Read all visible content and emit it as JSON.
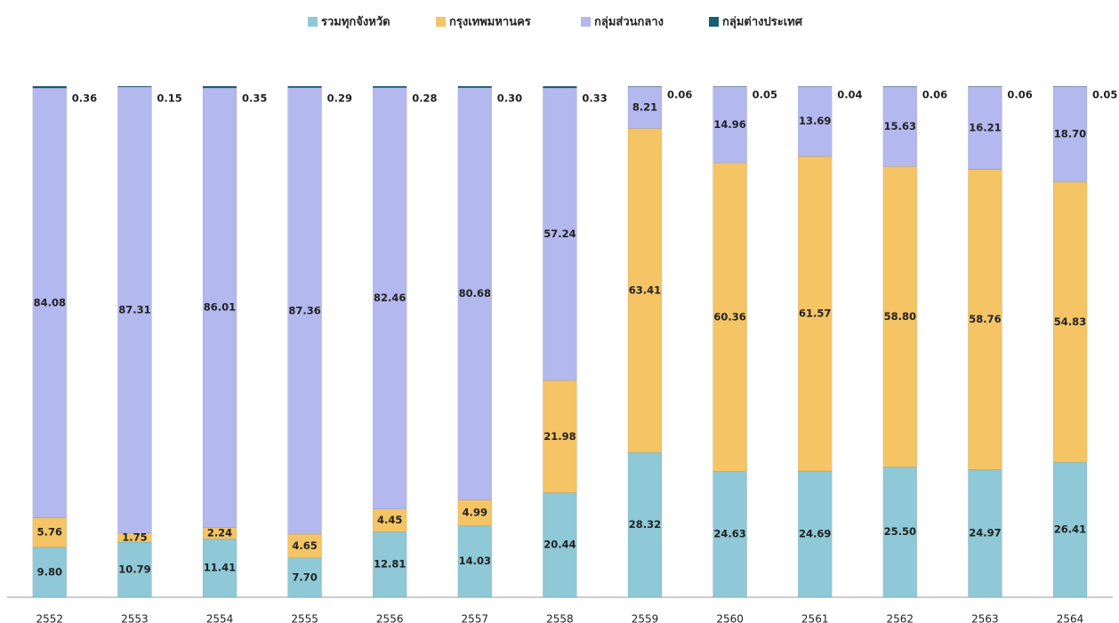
{
  "chart_data": {
    "type": "stacked_bar",
    "categories": [
      "2552",
      "2553",
      "2554",
      "2555",
      "2556",
      "2557",
      "2558",
      "2559",
      "2560",
      "2561",
      "2562",
      "2563",
      "2564"
    ],
    "series": [
      {
        "name": "รวมทุกจังหวัด",
        "color": "#8fc8d6",
        "values": [
          9.8,
          10.79,
          11.41,
          7.7,
          12.81,
          14.03,
          20.44,
          28.32,
          24.63,
          24.69,
          25.5,
          24.97,
          26.41
        ]
      },
      {
        "name": "กรุงเทพมหานคร",
        "color": "#f4c465",
        "values": [
          5.76,
          1.75,
          2.24,
          4.65,
          4.45,
          4.99,
          21.98,
          63.41,
          60.36,
          61.57,
          58.8,
          58.76,
          54.83
        ]
      },
      {
        "name": "กลุ่มส่วนกลาง",
        "color": "#b3b8ee",
        "values": [
          84.08,
          87.31,
          86.01,
          87.36,
          82.46,
          80.68,
          57.24,
          8.21,
          14.96,
          13.69,
          15.63,
          16.21,
          18.7
        ]
      },
      {
        "name": "กลุ่มต่างประเทศ",
        "color": "#165e72",
        "values": [
          0.36,
          0.15,
          0.35,
          0.29,
          0.28,
          0.3,
          0.33,
          0.06,
          0.05,
          0.04,
          0.06,
          0.06,
          0.05
        ]
      }
    ],
    "value_labels": [
      [
        "9.80",
        "10.79",
        "11.41",
        "7.70",
        "12.81",
        "14.03",
        "20.44",
        "28.32",
        "24.63",
        "24.69",
        "25.50",
        "24.97",
        "26.41"
      ],
      [
        "5.76",
        "1.75",
        "2.24",
        "4.65",
        "4.45",
        "4.99",
        "21.98",
        "63.41",
        "60.36",
        "61.57",
        "58.80",
        "58.76",
        "54.83"
      ],
      [
        "84.08",
        "87.31",
        "86.01",
        "87.36",
        "82.46",
        "80.68",
        "57.24",
        "8.21",
        "14.96",
        "13.69",
        "15.63",
        "16.21",
        "18.70"
      ],
      [
        "0.36",
        "0.15",
        "0.35",
        "0.29",
        "0.28",
        "0.30",
        "0.33",
        "0.06",
        "0.05",
        "0.04",
        "0.06",
        "0.06",
        "0.05"
      ]
    ],
    "ylim": [
      0,
      100
    ],
    "legend": "top"
  }
}
